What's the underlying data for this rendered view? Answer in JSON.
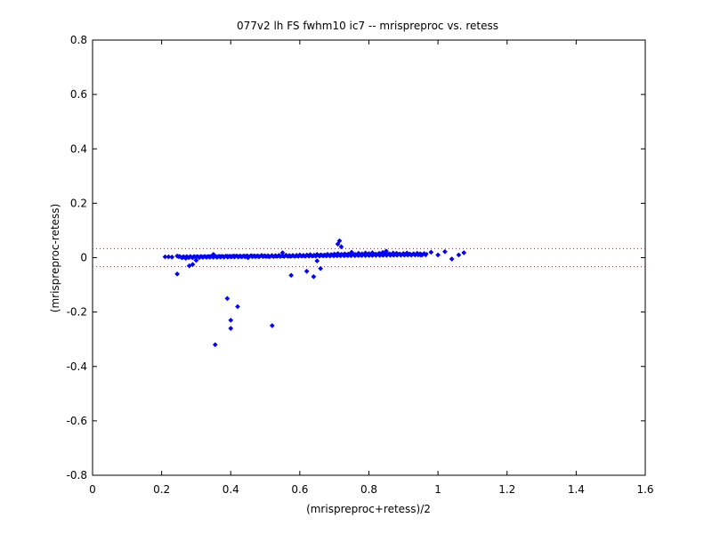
{
  "chart_data": {
    "type": "scatter",
    "title": "077v2 lh FS fwhm10 ic7 -- mrispreproc vs. retess",
    "xlabel": "(mrispreproc+retess)/2",
    "ylabel": "(mrispreproc-retess)",
    "xlim": [
      0,
      1.6
    ],
    "ylim": [
      -0.8,
      0.8
    ],
    "x_ticks": [
      "0",
      "0.2",
      "0.4",
      "0.6",
      "0.8",
      "1",
      "1.2",
      "1.4",
      "1.6"
    ],
    "y_ticks": [
      "0.8",
      "0.6",
      "0.4",
      "0.2",
      "0",
      "-0.2",
      "-0.4",
      "-0.6",
      "-0.8"
    ],
    "grid": false,
    "marker_color": "#0000ff",
    "reference_lines": {
      "values": [
        0.033,
        -0.033
      ],
      "color": "#ff0000",
      "style": "dotted"
    },
    "series": [
      {
        "x": [
          0.21,
          0.22,
          0.23,
          0.245,
          0.25,
          0.26,
          0.27,
          0.28,
          0.29,
          0.3,
          0.31,
          0.32,
          0.33,
          0.34,
          0.35,
          0.36,
          0.37,
          0.38,
          0.39,
          0.4,
          0.41,
          0.42,
          0.43,
          0.44,
          0.45,
          0.46,
          0.47,
          0.48,
          0.49,
          0.5,
          0.51,
          0.52,
          0.53,
          0.54,
          0.55,
          0.56,
          0.57,
          0.58,
          0.59,
          0.6,
          0.61,
          0.62,
          0.63,
          0.64,
          0.65,
          0.66,
          0.67,
          0.68,
          0.69,
          0.7,
          0.71,
          0.715,
          0.72,
          0.73,
          0.74,
          0.75,
          0.76,
          0.77,
          0.78,
          0.79,
          0.8,
          0.81,
          0.82,
          0.83,
          0.84,
          0.85,
          0.86,
          0.87,
          0.88,
          0.89,
          0.9,
          0.91,
          0.92,
          0.93,
          0.94,
          0.95,
          0.96,
          0.98,
          1.0,
          1.02,
          1.04,
          1.06,
          1.075,
          0.715,
          0.71,
          0.72,
          0.245,
          0.28,
          0.29,
          0.39,
          0.4,
          0.4,
          0.42,
          0.355,
          0.52,
          0.575,
          0.62,
          0.64,
          0.66,
          0.3,
          0.35,
          0.45,
          0.55,
          0.65,
          0.75,
          0.85,
          0.95
        ],
        "y": [
          0.003,
          0.003,
          0.002,
          0.006,
          0.004,
          0.0,
          -0.002,
          0.001,
          0.0,
          0.002,
          0.001,
          0.003,
          0.002,
          0.004,
          0.003,
          0.002,
          0.004,
          0.003,
          0.005,
          0.004,
          0.006,
          0.005,
          0.004,
          0.006,
          0.005,
          0.007,
          0.006,
          0.005,
          0.008,
          0.006,
          0.004,
          0.007,
          0.006,
          0.008,
          0.007,
          0.009,
          0.006,
          0.008,
          0.007,
          0.01,
          0.008,
          0.009,
          0.011,
          0.008,
          0.012,
          0.01,
          0.009,
          0.012,
          0.011,
          0.013,
          0.015,
          0.01,
          0.012,
          0.014,
          0.013,
          0.015,
          0.012,
          0.016,
          0.014,
          0.017,
          0.015,
          0.018,
          0.013,
          0.016,
          0.019,
          0.015,
          0.014,
          0.017,
          0.016,
          0.013,
          0.015,
          0.017,
          0.012,
          0.014,
          0.016,
          0.013,
          0.015,
          0.02,
          0.01,
          0.022,
          -0.005,
          0.01,
          0.018,
          0.062,
          0.05,
          0.04,
          -0.06,
          -0.03,
          -0.025,
          -0.15,
          -0.23,
          -0.26,
          -0.18,
          -0.32,
          -0.25,
          -0.065,
          -0.05,
          -0.07,
          -0.04,
          -0.01,
          0.012,
          0.0,
          0.018,
          -0.012,
          0.02,
          0.024,
          0.01
        ]
      }
    ]
  }
}
